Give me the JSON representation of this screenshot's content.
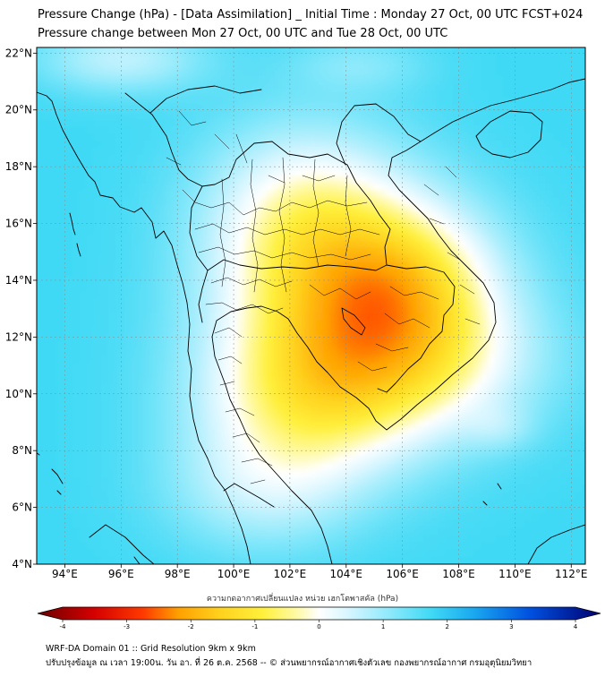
{
  "title_line1": "Pressure Change (hPa) - [Data Assimilation] _ Initial Time : Monday 27 Oct, 00 UTC FCST+024",
  "title_line2": "Pressure change between Mon 27 Oct, 00 UTC and Tue 28 Oct, 00 UTC",
  "map": {
    "lon_range": [
      93,
      112.5
    ],
    "lat_range": [
      4,
      22.2
    ],
    "lon_ticks": [
      {
        "value": 94,
        "label": "94°E"
      },
      {
        "value": 96,
        "label": "96°E"
      },
      {
        "value": 98,
        "label": "98°E"
      },
      {
        "value": 100,
        "label": "100°E"
      },
      {
        "value": 102,
        "label": "102°E"
      },
      {
        "value": 104,
        "label": "104°E"
      },
      {
        "value": 106,
        "label": "106°E"
      },
      {
        "value": 108,
        "label": "108°E"
      },
      {
        "value": 110,
        "label": "110°E"
      },
      {
        "value": 112,
        "label": "112°E"
      }
    ],
    "lat_ticks": [
      {
        "value": 4,
        "label": "4°N"
      },
      {
        "value": 6,
        "label": "6°N"
      },
      {
        "value": 8,
        "label": "8°N"
      },
      {
        "value": 10,
        "label": "10°N"
      },
      {
        "value": 12,
        "label": "12°N"
      },
      {
        "value": 14,
        "label": "14°N"
      },
      {
        "value": 16,
        "label": "16°N"
      },
      {
        "value": 18,
        "label": "18°N"
      },
      {
        "value": 20,
        "label": "20°N"
      },
      {
        "value": 22,
        "label": "22°N"
      }
    ],
    "gridlines": true,
    "field": {
      "background_value": 1.6,
      "blobs": [
        {
          "lon": 104.3,
          "lat": 12.8,
          "rlon": 4.5,
          "rlat": 3.8,
          "amp": -2.6
        },
        {
          "lon": 102.5,
          "lat": 16.5,
          "rlon": 3.6,
          "rlat": 3.2,
          "amp": -1.4
        },
        {
          "lon": 106.5,
          "lat": 14.2,
          "rlon": 3.0,
          "rlat": 2.6,
          "amp": -1.0
        },
        {
          "lon": 102.5,
          "lat": 9.5,
          "rlon": 4.0,
          "rlat": 2.8,
          "amp": -1.4
        },
        {
          "lon": 107.5,
          "lat": 11.0,
          "rlon": 4.0,
          "rlat": 2.5,
          "amp": -0.9
        },
        {
          "lon": 101.0,
          "lat": 6.5,
          "rlon": 3.5,
          "rlat": 2.2,
          "amp": -0.8
        },
        {
          "lon": 96.0,
          "lat": 21.8,
          "rlon": 3.0,
          "rlat": 1.2,
          "amp": -1.0
        },
        {
          "lon": 104.5,
          "lat": 21.6,
          "rlon": 2.5,
          "rlat": 1.0,
          "amp": -0.5
        },
        {
          "lon": 109.5,
          "lat": 8.8,
          "rlon": 1.2,
          "rlat": 0.8,
          "amp": -0.4
        }
      ]
    },
    "coastline_color": "#000000"
  },
  "colorbar": {
    "min": -4,
    "max": 4,
    "ticks": [
      {
        "value": -4,
        "label": "-4"
      },
      {
        "value": -3,
        "label": "-3"
      },
      {
        "value": -2,
        "label": "-2"
      },
      {
        "value": -1,
        "label": "-1"
      },
      {
        "value": 0,
        "label": "0"
      },
      {
        "value": 1,
        "label": "1"
      },
      {
        "value": 2,
        "label": "2"
      },
      {
        "value": 3,
        "label": "3"
      },
      {
        "value": 4,
        "label": "4"
      }
    ],
    "stops": [
      {
        "value": -4,
        "color": "#6b0000"
      },
      {
        "value": -3.2,
        "color": "#d40000"
      },
      {
        "value": -2.5,
        "color": "#ff3a00"
      },
      {
        "value": -2.0,
        "color": "#ffa000"
      },
      {
        "value": -1.4,
        "color": "#ffd21e"
      },
      {
        "value": -0.8,
        "color": "#fff03c"
      },
      {
        "value": -0.3,
        "color": "#fffaaa"
      },
      {
        "value": 0,
        "color": "#ffffff"
      },
      {
        "value": 0.4,
        "color": "#d8f6ff"
      },
      {
        "value": 1.0,
        "color": "#8ee9fb"
      },
      {
        "value": 1.6,
        "color": "#3fd9f5"
      },
      {
        "value": 2.2,
        "color": "#1aa8f0"
      },
      {
        "value": 3.0,
        "color": "#0050e0"
      },
      {
        "value": 4.0,
        "color": "#000070"
      }
    ],
    "label": "ความกดอากาศเปลี่ยนแปลง หน่วย เฮกโตพาสคัล (hPa)"
  },
  "footer_line1": "WRF-DA Domain 01 :: Grid Resolution 9km x 9km",
  "footer_line2": "ปรับปรุงข้อมูล ณ เวลา 19:00น. วัน อา. ที่ 26 ต.ค. 2568 -- © ส่วนพยากรณ์อากาศเชิงตัวเลข กองพยากรณ์อากาศ กรมอุตุนิยมวิทยา"
}
